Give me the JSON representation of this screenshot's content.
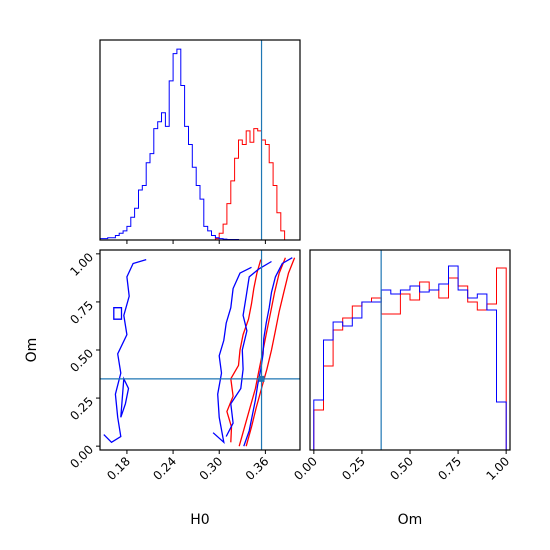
{
  "chart_data": {
    "type": "corner",
    "colors": {
      "red": "#ff0000",
      "blue": "#0000ff",
      "truth": "#1f77b4"
    },
    "truth": {
      "H0": 0.355,
      "Om": 0.35
    },
    "panels": {
      "h0_histogram": {
        "type": "histogram",
        "xlim": [
          0.145,
          0.405
        ],
        "bin_edges": [
          0.145,
          0.155,
          0.165,
          0.175,
          0.185,
          0.195,
          0.205,
          0.215,
          0.225,
          0.235,
          0.245,
          0.255,
          0.265,
          0.275,
          0.285,
          0.295,
          0.305,
          0.315,
          0.325,
          0.335,
          0.34,
          0.345,
          0.35,
          0.355,
          0.36,
          0.365,
          0.37,
          0.375,
          0.38,
          0.385,
          0.39,
          0.395,
          0.4,
          0.405
        ],
        "series": [
          {
            "color": "red",
            "start": 0.295,
            "bin_width": 0.005,
            "values": [
              0.3,
              1.5,
              3.5,
              8.0,
              13.0,
              18.0,
              22.0,
              21.0,
              24.0,
              21.5,
              24.5,
              24.0,
              22.0,
              21.0,
              17.0,
              12.0,
              6.0,
              2.0
            ]
          },
          {
            "color": "blue",
            "start": 0.145,
            "bin_width": 0.005,
            "values": [
              0.3,
              0.3,
              0.5,
              0.5,
              1.0,
              1.5,
              2.0,
              3.0,
              5.0,
              7.0,
              11.0,
              12.0,
              17.0,
              19.0,
              24.5,
              26.0,
              28.0,
              25.0,
              35.0,
              41.0,
              42.0,
              34.0,
              25.0,
              21.0,
              16.0,
              12.0,
              9.0,
              3.0,
              2.0,
              1.0,
              0.5,
              0.3,
              0.2,
              0.1,
              0.1,
              0.1
            ]
          }
        ]
      },
      "joint_contours": {
        "type": "contour",
        "xlabel": "H0",
        "ylabel": "Om",
        "xlim": [
          0.145,
          0.405
        ],
        "ylim": [
          -0.02,
          1.02
        ],
        "xticks": [
          "0.18",
          "0.24",
          "0.30",
          "0.36"
        ],
        "yticks": [
          "0.00",
          "0.25",
          "0.50",
          "0.75",
          "1.00"
        ],
        "series": [
          {
            "color": "red",
            "levels": [
              [
                [
                  0.335,
                  0.0
                ],
                [
                  0.342,
                  0.1
                ],
                [
                  0.348,
                  0.2
                ],
                [
                  0.355,
                  0.3
                ],
                [
                  0.362,
                  0.4
                ],
                [
                  0.368,
                  0.5
                ],
                [
                  0.373,
                  0.6
                ],
                [
                  0.378,
                  0.7
                ],
                [
                  0.384,
                  0.8
                ],
                [
                  0.39,
                  0.9
                ],
                [
                  0.398,
                  0.98
                ]
              ],
              [
                [
                  0.326,
                  0.0
                ],
                [
                  0.333,
                  0.1
                ],
                [
                  0.34,
                  0.2
                ],
                [
                  0.347,
                  0.3
                ],
                [
                  0.352,
                  0.4
                ],
                [
                  0.357,
                  0.5
                ],
                [
                  0.362,
                  0.6
                ],
                [
                  0.367,
                  0.7
                ],
                [
                  0.372,
                  0.8
                ],
                [
                  0.378,
                  0.9
                ],
                [
                  0.386,
                  0.98
                ]
              ],
              [
                [
                  0.315,
                  0.02
                ],
                [
                  0.316,
                  0.1
                ],
                [
                  0.31,
                  0.18
                ],
                [
                  0.318,
                  0.26
                ],
                [
                  0.315,
                  0.35
                ],
                [
                  0.325,
                  0.42
                ],
                [
                  0.327,
                  0.5
                ],
                [
                  0.331,
                  0.58
                ],
                [
                  0.338,
                  0.66
                ],
                [
                  0.342,
                  0.74
                ],
                [
                  0.345,
                  0.82
                ],
                [
                  0.349,
                  0.9
                ],
                [
                  0.354,
                  0.97
                ]
              ]
            ]
          },
          {
            "color": "blue",
            "levels": [
              [
                [
                  0.332,
                  0.0
                ],
                [
                  0.339,
                  0.08
                ],
                [
                  0.343,
                  0.16
                ],
                [
                  0.347,
                  0.24
                ],
                [
                  0.35,
                  0.32
                ],
                [
                  0.354,
                  0.4
                ],
                [
                  0.357,
                  0.48
                ],
                [
                  0.358,
                  0.56
                ],
                [
                  0.361,
                  0.64
                ],
                [
                  0.365,
                  0.72
                ],
                [
                  0.368,
                  0.8
                ],
                [
                  0.373,
                  0.88
                ],
                [
                  0.382,
                  0.95
                ],
                [
                  0.395,
                  0.98
                ]
              ],
              [
                [
                  0.309,
                  0.05
                ],
                [
                  0.318,
                  0.12
                ],
                [
                  0.315,
                  0.22
                ],
                [
                  0.328,
                  0.3
                ],
                [
                  0.331,
                  0.4
                ],
                [
                  0.33,
                  0.5
                ],
                [
                  0.336,
                  0.6
                ],
                [
                  0.331,
                  0.68
                ],
                [
                  0.335,
                  0.78
                ],
                [
                  0.339,
                  0.88
                ],
                [
                  0.351,
                  0.92
                ],
                [
                  0.368,
                  0.96
                ]
              ],
              [
                [
                  0.292,
                  0.07
                ],
                [
                  0.306,
                  0.02
                ],
                [
                  0.3,
                  0.15
                ],
                [
                  0.298,
                  0.27
                ],
                [
                  0.303,
                  0.38
                ],
                [
                  0.3,
                  0.47
                ],
                [
                  0.306,
                  0.55
                ],
                [
                  0.309,
                  0.64
                ],
                [
                  0.315,
                  0.72
                ],
                [
                  0.318,
                  0.82
                ],
                [
                  0.327,
                  0.9
                ],
                [
                  0.342,
                  0.93
                ]
              ],
              [
                [
                  0.15,
                  0.06
                ],
                [
                  0.16,
                  0.02
                ],
                [
                  0.172,
                  0.05
                ],
                [
                  0.168,
                  0.15
                ],
                [
                  0.165,
                  0.27
                ],
                [
                  0.172,
                  0.38
                ],
                [
                  0.168,
                  0.48
                ],
                [
                  0.18,
                  0.58
                ],
                [
                  0.176,
                  0.68
                ],
                [
                  0.183,
                  0.78
                ],
                [
                  0.18,
                  0.88
                ],
                [
                  0.188,
                  0.95
                ],
                [
                  0.205,
                  0.97
                ]
              ],
              [
                [
                  0.172,
                  0.15
                ],
                [
                  0.178,
                  0.22
                ],
                [
                  0.182,
                  0.3
                ],
                [
                  0.176,
                  0.35
                ]
              ],
              [
                [
                  0.163,
                  0.72
                ],
                [
                  0.173,
                  0.72
                ],
                [
                  0.173,
                  0.66
                ],
                [
                  0.163,
                  0.66
                ]
              ]
            ]
          }
        ]
      },
      "om_histogram": {
        "type": "histogram",
        "xlabel": "Om",
        "xlim": [
          -0.02,
          1.02
        ],
        "xticks": [
          "0.00",
          "0.25",
          "0.50",
          "0.75",
          "1.00"
        ],
        "series": [
          {
            "color": "red",
            "start": 0.0,
            "bin_width": 0.05,
            "values": [
              0.2,
              0.42,
              0.6,
              0.66,
              0.72,
              0.74,
              0.76,
              0.68,
              0.68,
              0.78,
              0.75,
              0.84,
              0.8,
              0.76,
              0.86,
              0.82,
              0.74,
              0.7,
              0.73,
              0.91
            ]
          },
          {
            "color": "blue",
            "start": 0.0,
            "bin_width": 0.05,
            "values": [
              0.25,
              0.55,
              0.64,
              0.62,
              0.66,
              0.74,
              0.74,
              0.8,
              0.78,
              0.8,
              0.82,
              0.79,
              0.8,
              0.83,
              0.92,
              0.8,
              0.76,
              0.78,
              0.7,
              0.24
            ]
          }
        ]
      }
    }
  }
}
